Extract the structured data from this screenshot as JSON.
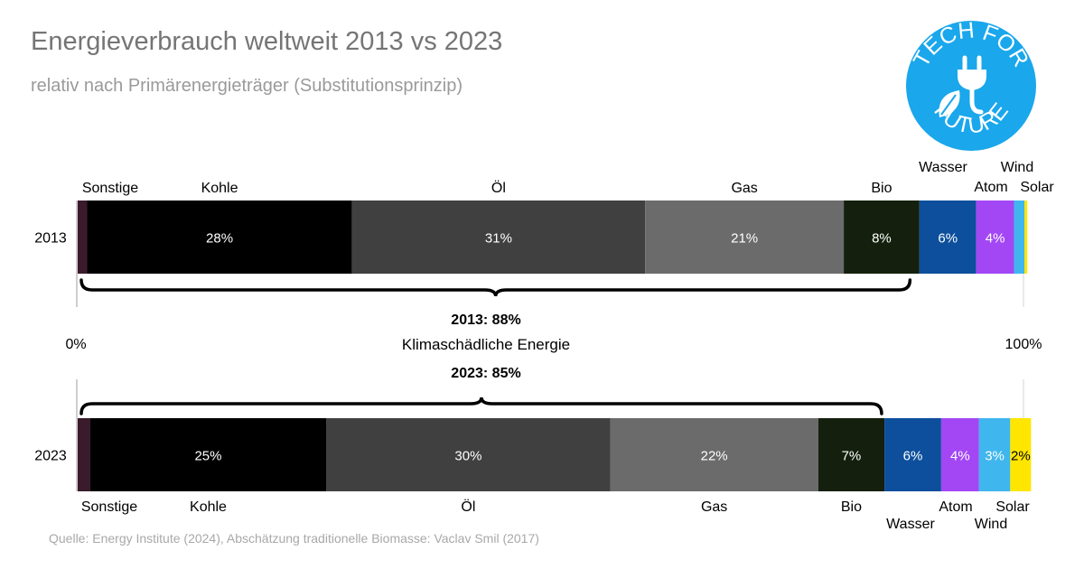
{
  "title": "Energieverbrauch weltweit 2013 vs 2023",
  "subtitle": "relativ nach Primärenergieträger (Substitutionsprinzip)",
  "source": "Quelle: Energy Institute (2024), Abschätzung traditionelle Biomasse: Vaclav Smil (2017)",
  "logo": {
    "line1": "TECH FOR",
    "line2": "FUTURE"
  },
  "colors": {
    "Sonstige": "#3b1a2c",
    "Kohle": "#000000",
    "Öl": "#404040",
    "Gas": "#6b6b6b",
    "Bio": "#14200d",
    "Wasser": "#0d4f9c",
    "Atom": "#a347f5",
    "Wind": "#3fb6ee",
    "Solar": "#ffe600",
    "logo": "#1aa7ec"
  },
  "chart_data": {
    "type": "bar",
    "orientation": "horizontal-stacked-100",
    "categories": [
      "2013",
      "2023"
    ],
    "xlim": [
      0,
      100
    ],
    "axis_min_label": "0%",
    "axis_max_label": "100%",
    "series": [
      {
        "name": "Sonstige",
        "values": [
          1,
          1.3
        ]
      },
      {
        "name": "Kohle",
        "values": [
          28,
          25
        ]
      },
      {
        "name": "Öl",
        "values": [
          31,
          30
        ]
      },
      {
        "name": "Gas",
        "values": [
          21,
          22
        ]
      },
      {
        "name": "Bio",
        "values": [
          8,
          7
        ]
      },
      {
        "name": "Wasser",
        "values": [
          6,
          6
        ]
      },
      {
        "name": "Atom",
        "values": [
          4,
          4
        ]
      },
      {
        "name": "Wind",
        "values": [
          1.1,
          3.3
        ]
      },
      {
        "name": "Solar",
        "values": [
          0.3,
          2.2
        ]
      }
    ],
    "value_labels": [
      [
        "",
        "28%",
        "31%",
        "21%",
        "8%",
        "6%",
        "4%",
        "",
        ""
      ],
      [
        "",
        "25%",
        "30%",
        "22%",
        "7%",
        "6%",
        "4%",
        "3%",
        "2%"
      ]
    ],
    "annotation": {
      "label_2013": "2013: 88%",
      "label_middle": "Klimaschädliche Energie",
      "label_2023": "2023: 85%",
      "brace_2013_range": [
        0,
        88
      ],
      "brace_2023_range": [
        0,
        85
      ]
    }
  }
}
